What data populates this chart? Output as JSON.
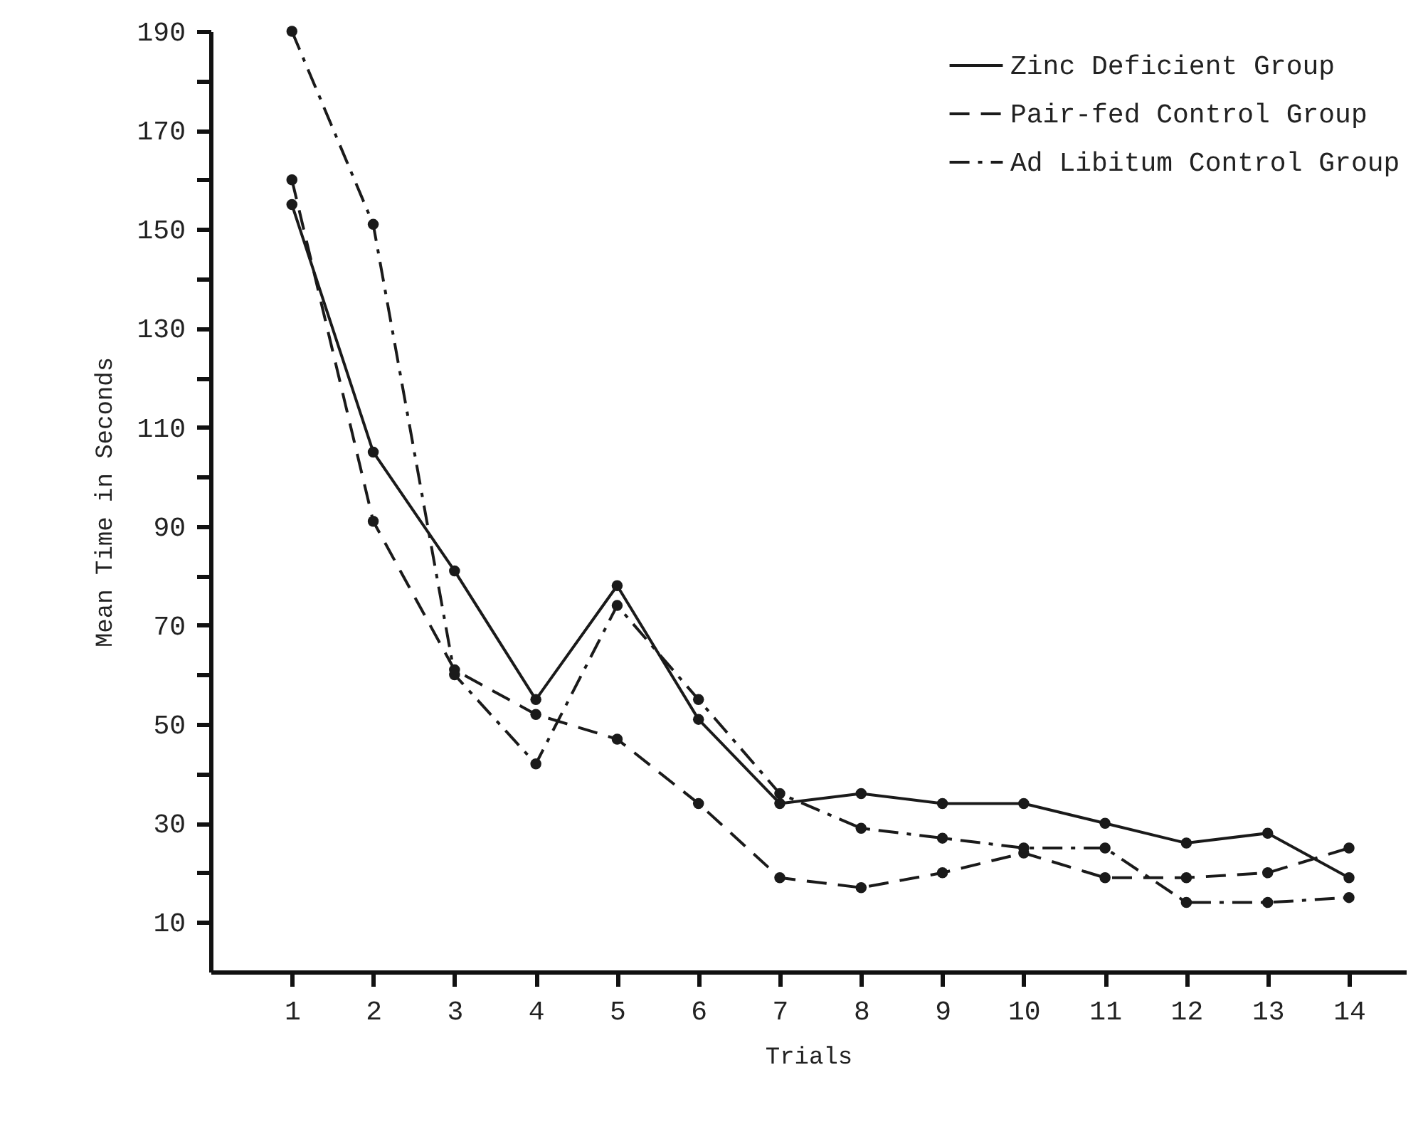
{
  "chart_data": {
    "type": "line",
    "xlabel": "Trials",
    "ylabel": "Mean Time in Seconds",
    "x": [
      1,
      2,
      3,
      4,
      5,
      6,
      7,
      8,
      9,
      10,
      11,
      12,
      13,
      14
    ],
    "series": [
      {
        "name": "Zinc Deficient Group",
        "color": "#1a1a1a",
        "line_style": "solid",
        "values": [
          155,
          105,
          81,
          55,
          78,
          51,
          34,
          36,
          34,
          34,
          30,
          26,
          28,
          19
        ]
      },
      {
        "name": "Pair-fed Control Group",
        "color": "#1a1a1a",
        "line_style": "dashed",
        "values": [
          160,
          91,
          61,
          52,
          47,
          34,
          19,
          17,
          20,
          24,
          19,
          19,
          20,
          25
        ]
      },
      {
        "name": "Ad Libitum Control Group",
        "color": "#1a1a1a",
        "line_style": "dotted",
        "values": [
          190,
          151,
          60,
          42,
          74,
          55,
          36,
          29,
          27,
          25,
          25,
          14,
          14,
          15
        ]
      }
    ],
    "xlim": [
      0,
      14.7
    ],
    "xticks": [
      1,
      2,
      3,
      4,
      5,
      6,
      7,
      8,
      9,
      10,
      11,
      12,
      13,
      14
    ],
    "ylim": [
      0,
      190
    ],
    "yticks": [
      10,
      {
        "value": 20,
        "label": null
      },
      30,
      {
        "value": 40,
        "label": null
      },
      50,
      {
        "value": 60,
        "label": null
      },
      70,
      {
        "value": 80,
        "label": null
      },
      90,
      {
        "value": 100,
        "label": null
      },
      110,
      {
        "value": 120,
        "label": null
      },
      130,
      {
        "value": 140,
        "label": null
      },
      150,
      {
        "value": 160,
        "label": null
      },
      170,
      {
        "value": 180,
        "label": null
      },
      190
    ],
    "grid": false,
    "legend": "top right",
    "marker": "circle"
  }
}
